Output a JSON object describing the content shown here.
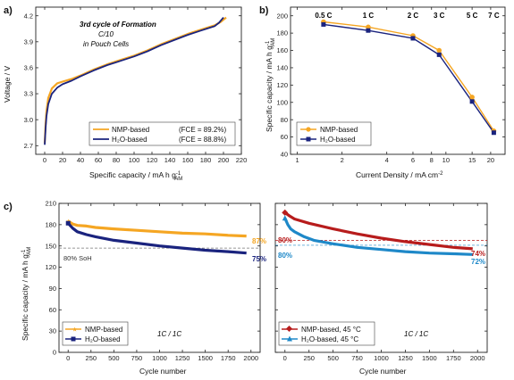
{
  "figure": {
    "panel_a": {
      "label": "a)",
      "annotation": [
        "3rd cycle of Formation",
        "C/10",
        "in Pouch Cells"
      ],
      "xlabel": "Specific capacity / mA h g",
      "xlabel_sub": "AM",
      "xlabel_sup": "-1",
      "ylabel": "Voltage / V",
      "legend": [
        {
          "name": "NMP-based",
          "fce": "(FCE = 89.2%)",
          "color": "#f5a623"
        },
        {
          "name": "H₂O-based",
          "fce": "(FCE = 88.8%)",
          "color": "#1a237e"
        }
      ]
    },
    "panel_b": {
      "label": "b)",
      "xlabel": "Current Density / mA cm",
      "xlabel_sup": "-2",
      "ylabel": "Specific capacity / mA h g",
      "ylabel_sub": "AM",
      "ylabel_sup": "-1",
      "rate_labels": [
        "0.5 C",
        "1 C",
        "2 C",
        "3 C",
        "5 C",
        "7 C"
      ],
      "legend": [
        {
          "name": "NMP-based",
          "color": "#f5a623"
        },
        {
          "name": "H₂O-based",
          "color": "#1a237e"
        }
      ]
    },
    "panel_c": {
      "label": "c)",
      "ylabel": "Specific capacity / mA h g",
      "ylabel_sub": "AM",
      "ylabel_sup": "-1",
      "xlabel_left": "Cycle number",
      "xlabel_right": "Cycle number",
      "soh_label": "80% SoH",
      "protocol_left": "1C / 1C",
      "protocol_right": "1C / 1C",
      "end_labels_left": [
        {
          "text": "87%",
          "color": "#f5a623"
        },
        {
          "text": "75%",
          "color": "#1a237e"
        }
      ],
      "end_labels_right": [
        {
          "text": "74%",
          "color": "#b71c1c"
        },
        {
          "text": "72%",
          "color": "#1e88c8"
        }
      ],
      "ref_labels_right": [
        {
          "text": "80%",
          "color": "#b71c1c"
        },
        {
          "text": "80%",
          "color": "#1e88c8"
        }
      ],
      "legend_left": [
        {
          "name": "NMP-based",
          "color": "#f5a623"
        },
        {
          "name": "H₂O-based",
          "color": "#1a237e"
        }
      ],
      "legend_right": [
        {
          "name": "NMP-based, 45 °C",
          "color": "#b71c1c"
        },
        {
          "name": "H₂O-based, 45 °C",
          "color": "#1e88c8"
        }
      ]
    }
  },
  "chart_data": [
    {
      "panel": "a",
      "type": "line",
      "xlabel": "Specific capacity / mA h g-1 AM",
      "ylabel": "Voltage / V",
      "xlim": [
        -10,
        220
      ],
      "ylim": [
        2.6,
        4.3
      ],
      "xticks": [
        0,
        20,
        40,
        60,
        80,
        100,
        120,
        140,
        160,
        180,
        200,
        220
      ],
      "yticks": [
        2.7,
        3.0,
        3.3,
        3.6,
        3.9,
        4.2
      ],
      "series": [
        {
          "name": "NMP-based",
          "color": "#f5a623",
          "x": [
            0,
            1,
            2,
            4,
            8,
            14,
            20,
            30,
            40,
            55,
            70,
            85,
            100,
            115,
            130,
            145,
            160,
            175,
            190,
            197,
            203
          ],
          "y": [
            2.73,
            2.95,
            3.1,
            3.25,
            3.36,
            3.42,
            3.44,
            3.47,
            3.51,
            3.58,
            3.64,
            3.69,
            3.74,
            3.8,
            3.87,
            3.93,
            3.99,
            4.04,
            4.09,
            4.13,
            4.18
          ]
        },
        {
          "name": "H₂O-based",
          "color": "#1a237e",
          "x": [
            0,
            1,
            2,
            4,
            8,
            14,
            20,
            30,
            40,
            55,
            70,
            85,
            100,
            115,
            130,
            145,
            160,
            175,
            190,
            195,
            200
          ],
          "y": [
            2.71,
            2.9,
            3.04,
            3.18,
            3.3,
            3.37,
            3.41,
            3.45,
            3.5,
            3.57,
            3.63,
            3.68,
            3.73,
            3.79,
            3.86,
            3.92,
            3.98,
            4.03,
            4.08,
            4.12,
            4.18
          ]
        }
      ]
    },
    {
      "panel": "b",
      "type": "line",
      "xlabel": "Current Density / mA cm-2",
      "ylabel": "Specific capacity / mA h g-1 AM",
      "xscale": "log",
      "xlim": [
        0.9,
        25
      ],
      "ylim": [
        40,
        210
      ],
      "xticks": [
        1,
        2,
        4,
        6,
        8,
        10,
        15,
        20
      ],
      "yticks": [
        40,
        60,
        80,
        100,
        120,
        140,
        160,
        180,
        200
      ],
      "categories": [
        "0.5 C",
        "1 C",
        "2 C",
        "3 C",
        "5 C",
        "7 C"
      ],
      "series": [
        {
          "name": "NMP-based",
          "color": "#f5a623",
          "x": [
            1.5,
            3.0,
            6.0,
            9.0,
            15.0,
            21.0
          ],
          "y": [
            193,
            187,
            177,
            160,
            106,
            67
          ]
        },
        {
          "name": "H₂O-based",
          "color": "#1a237e",
          "x": [
            1.5,
            3.0,
            6.0,
            9.0,
            15.0,
            21.0
          ],
          "y": [
            190,
            183,
            174,
            155,
            101,
            65
          ]
        }
      ]
    },
    {
      "panel": "c-left",
      "type": "line",
      "xlabel": "Cycle number",
      "ylabel": "Specific capacity / mA h g-1 AM",
      "xlim": [
        -100,
        2100
      ],
      "ylim": [
        0,
        210
      ],
      "xticks": [
        0,
        250,
        500,
        750,
        1000,
        1250,
        1500,
        1750,
        2000
      ],
      "yticks": [
        0,
        30,
        60,
        90,
        120,
        150,
        180,
        210
      ],
      "reference_line": 147,
      "series": [
        {
          "name": "NMP-based",
          "color": "#f5a623",
          "x": [
            0,
            50,
            100,
            200,
            300,
            500,
            750,
            1000,
            1250,
            1500,
            1750,
            1950
          ],
          "y": [
            185,
            181,
            179,
            178,
            176,
            174,
            172,
            170,
            168,
            167,
            165,
            164
          ]
        },
        {
          "name": "H₂O-based",
          "color": "#1a237e",
          "x": [
            0,
            50,
            100,
            200,
            300,
            500,
            750,
            1000,
            1250,
            1500,
            1750,
            1950
          ],
          "y": [
            182,
            175,
            170,
            166,
            163,
            158,
            154,
            150,
            147,
            144,
            142,
            140
          ]
        }
      ]
    },
    {
      "panel": "c-right",
      "type": "line",
      "xlabel": "Cycle number",
      "xlim": [
        -100,
        2100
      ],
      "ylim": [
        0,
        210
      ],
      "xticks": [
        0,
        250,
        500,
        750,
        1000,
        1250,
        1500,
        1750,
        2000
      ],
      "reference_lines": [
        {
          "y": 158,
          "color": "#b71c1c"
        },
        {
          "y": 151,
          "color": "#1e88c8"
        }
      ],
      "series": [
        {
          "name": "NMP-based, 45 °C",
          "color": "#b71c1c",
          "x": [
            0,
            50,
            100,
            250,
            500,
            750,
            1000,
            1250,
            1500,
            1750,
            1950
          ],
          "y": [
            197,
            192,
            188,
            182,
            174,
            167,
            161,
            156,
            152,
            148,
            146
          ]
        },
        {
          "name": "H₂O-based, 45 °C",
          "color": "#1e88c8",
          "x": [
            0,
            30,
            60,
            100,
            200,
            300,
            500,
            750,
            1000,
            1250,
            1500,
            1750,
            1950
          ],
          "y": [
            189,
            180,
            174,
            170,
            163,
            158,
            153,
            148,
            145,
            142,
            140,
            139,
            138
          ]
        }
      ]
    }
  ]
}
